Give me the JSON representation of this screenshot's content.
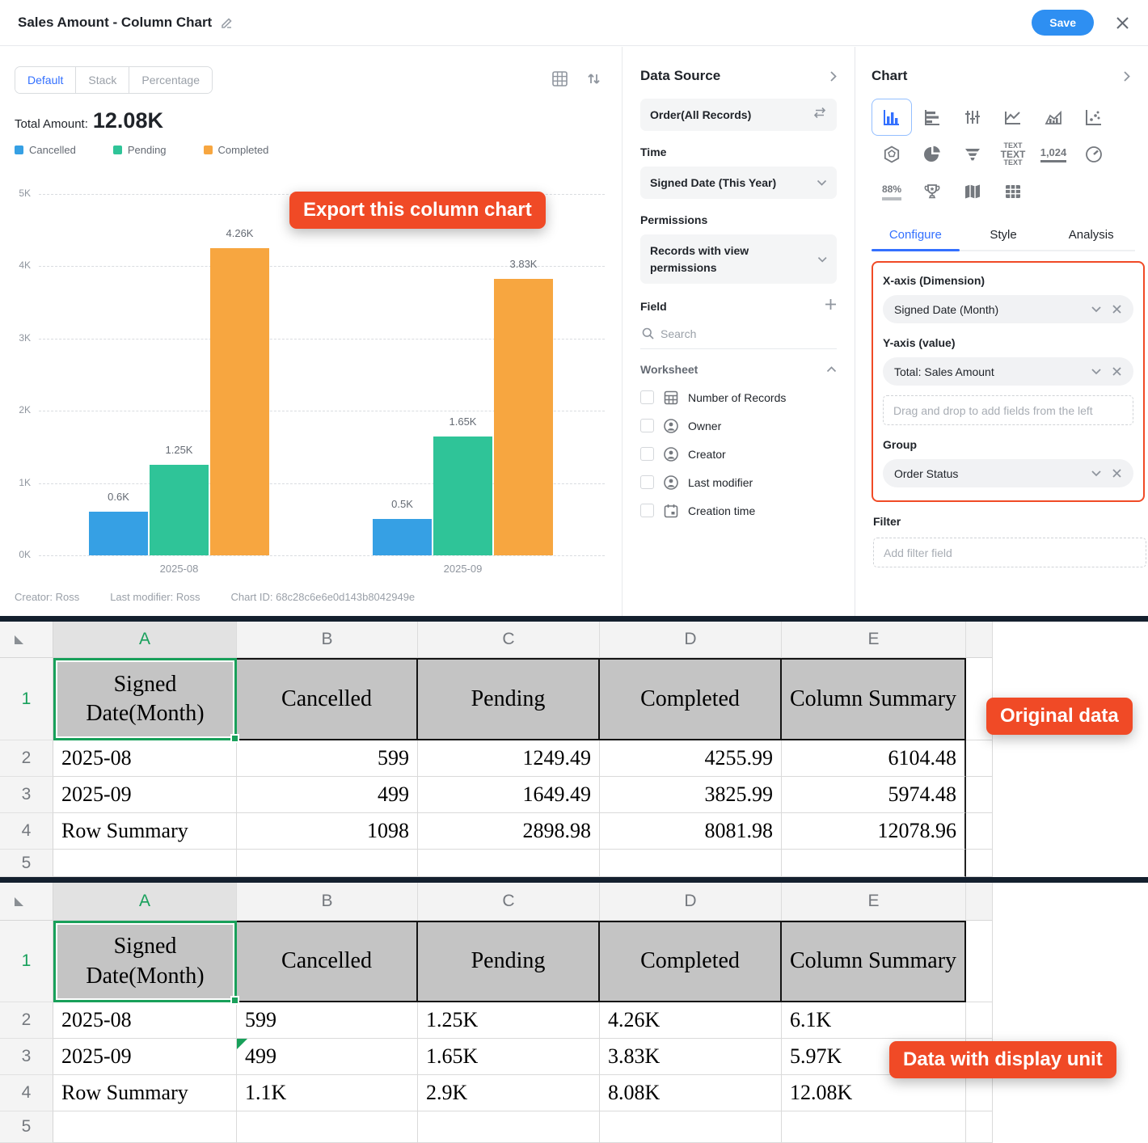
{
  "header": {
    "title": "Sales Amount - Column Chart",
    "save_label": "Save"
  },
  "editor": {
    "view_tabs": [
      {
        "label": "Default"
      },
      {
        "label": "Stack"
      },
      {
        "label": "Percentage"
      }
    ],
    "total_label": "Total Amount:",
    "total_value": "12.08K",
    "export_badge": "Export this column chart",
    "footer": {
      "creator": "Creator: Ross",
      "last_modifier": "Last modifier: Ross",
      "chart_id": "Chart ID: 68c28c6e6e0d143b8042949e"
    }
  },
  "chart_data": {
    "type": "bar",
    "title": "Sales Amount - Column Chart",
    "categories": [
      "2025-08",
      "2025-09"
    ],
    "series": [
      {
        "name": "Cancelled",
        "color": "#36a0e4",
        "values": [
          599,
          499
        ],
        "labels": [
          "0.6K",
          "0.5K"
        ]
      },
      {
        "name": "Pending",
        "color": "#2fc498",
        "values": [
          1249.49,
          1649.49
        ],
        "labels": [
          "1.25K",
          "1.65K"
        ]
      },
      {
        "name": "Completed",
        "color": "#f7a640",
        "values": [
          4255.99,
          3825.99
        ],
        "labels": [
          "4.26K",
          "3.83K"
        ]
      }
    ],
    "total": 12078.96,
    "ylim": [
      0,
      5000
    ],
    "yticks": [
      "0K",
      "1K",
      "2K",
      "3K",
      "4K",
      "5K"
    ],
    "grid": "horizontal-dashed",
    "legend_position": "top-left"
  },
  "data_source_panel": {
    "title": "Data Source",
    "source": "Order(All Records)",
    "time_label": "Time",
    "time_value": "Signed Date (This Year)",
    "permissions_label": "Permissions",
    "permissions_value": "Records with view permissions",
    "field_label": "Field",
    "search_placeholder": "Search",
    "worksheet_label": "Worksheet",
    "worksheet_items": [
      {
        "label": "Number of Records"
      },
      {
        "label": "Owner"
      },
      {
        "label": "Creator"
      },
      {
        "label": "Last modifier"
      },
      {
        "label": "Creation time"
      }
    ]
  },
  "chart_panel": {
    "title": "Chart",
    "icon_texts": {
      "word_cloud": "TEXT",
      "number": "1,024",
      "progress": "88%"
    },
    "tabs": [
      {
        "label": "Configure"
      },
      {
        "label": "Style"
      },
      {
        "label": "Analysis"
      }
    ],
    "xaxis_label": "X-axis (Dimension)",
    "xaxis_value": "Signed Date (Month)",
    "yaxis_label": "Y-axis (value)",
    "yaxis_value": "Total: Sales Amount",
    "yaxis_placeholder": "Drag and drop to add fields from the left",
    "group_label": "Group",
    "group_value": "Order Status",
    "filter_label": "Filter",
    "filter_placeholder": "Add filter field"
  },
  "sheets": [
    {
      "badge": "Original data",
      "col_letters": [
        "A",
        "B",
        "C",
        "D",
        "E"
      ],
      "header_row": [
        "Signed Date(Month)",
        "Cancelled",
        "Pending",
        "Completed",
        "Column Summary"
      ],
      "rows": [
        {
          "num": "2",
          "cells": [
            "2025-08",
            "599",
            "1249.49",
            "4255.99",
            "6104.48"
          ]
        },
        {
          "num": "3",
          "cells": [
            "2025-09",
            "499",
            "1649.49",
            "3825.99",
            "5974.48"
          ]
        },
        {
          "num": "4",
          "cells": [
            "Row Summary",
            "1098",
            "2898.98",
            "8081.98",
            "12078.96"
          ]
        },
        {
          "num": "5",
          "cells": [
            "",
            "",
            "",
            "",
            ""
          ]
        }
      ],
      "numeric_align": "right"
    },
    {
      "badge": "Data with display unit",
      "col_letters": [
        "A",
        "B",
        "C",
        "D",
        "E"
      ],
      "header_row": [
        "Signed Date(Month)",
        "Cancelled",
        "Pending",
        "Completed",
        "Column Summary"
      ],
      "rows": [
        {
          "num": "2",
          "cells": [
            "2025-08",
            "599",
            "1.25K",
            "4.26K",
            "6.1K"
          ]
        },
        {
          "num": "3",
          "cells": [
            "2025-09",
            "499",
            "1.65K",
            "3.83K",
            "5.97K"
          ],
          "flag_cell": 1
        },
        {
          "num": "4",
          "cells": [
            "Row Summary",
            "1.1K",
            "2.9K",
            "8.08K",
            "12.08K"
          ]
        },
        {
          "num": "5",
          "cells": [
            "",
            "",
            "",
            "",
            ""
          ]
        }
      ],
      "numeric_align": "left"
    }
  ]
}
